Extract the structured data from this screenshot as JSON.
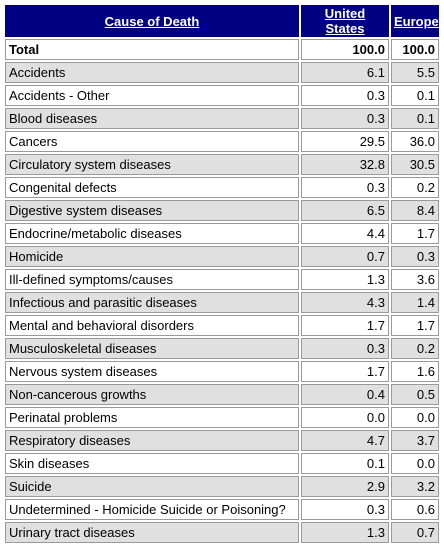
{
  "headers": {
    "cause": "Cause of Death",
    "us": "United States",
    "eu": "Europe"
  },
  "total": {
    "cause": "Total",
    "us": "100.0",
    "eu": "100.0"
  },
  "rows": [
    {
      "cause": "Accidents",
      "us": "6.1",
      "eu": "5.5"
    },
    {
      "cause": "Accidents - Other",
      "us": "0.3",
      "eu": "0.1"
    },
    {
      "cause": "Blood diseases",
      "us": "0.3",
      "eu": "0.1"
    },
    {
      "cause": "Cancers",
      "us": "29.5",
      "eu": "36.0"
    },
    {
      "cause": "Circulatory system diseases",
      "us": "32.8",
      "eu": "30.5"
    },
    {
      "cause": "Congenital defects",
      "us": "0.3",
      "eu": "0.2"
    },
    {
      "cause": "Digestive system diseases",
      "us": "6.5",
      "eu": "8.4"
    },
    {
      "cause": "Endocrine/metabolic diseases",
      "us": "4.4",
      "eu": "1.7"
    },
    {
      "cause": "Homicide",
      "us": "0.7",
      "eu": "0.3"
    },
    {
      "cause": "Ill-defined symptoms/causes",
      "us": "1.3",
      "eu": "3.6"
    },
    {
      "cause": "Infectious and parasitic diseases",
      "us": "4.3",
      "eu": "1.4"
    },
    {
      "cause": "Mental and behavioral disorders",
      "us": "1.7",
      "eu": "1.7"
    },
    {
      "cause": "Musculoskeletal diseases",
      "us": "0.3",
      "eu": "0.2"
    },
    {
      "cause": "Nervous system diseases",
      "us": "1.7",
      "eu": "1.6"
    },
    {
      "cause": "Non-cancerous growths",
      "us": "0.4",
      "eu": "0.5"
    },
    {
      "cause": "Perinatal problems",
      "us": "0.0",
      "eu": "0.0"
    },
    {
      "cause": "Respiratory diseases",
      "us": "4.7",
      "eu": "3.7"
    },
    {
      "cause": "Skin diseases",
      "us": "0.1",
      "eu": "0.0"
    },
    {
      "cause": "Suicide",
      "us": "2.9",
      "eu": "3.2"
    },
    {
      "cause": "Undetermined - Homicide Suicide or Poisoning?",
      "us": "0.3",
      "eu": "0.6"
    },
    {
      "cause": "Urinary tract diseases",
      "us": "1.3",
      "eu": "0.7"
    }
  ],
  "colors": {
    "header_bg": "#000080",
    "header_text": "#ffffff",
    "row_shaded": "#e0e0e0",
    "row_plain": "#ffffff",
    "cell_border": "#9a9a9a"
  }
}
